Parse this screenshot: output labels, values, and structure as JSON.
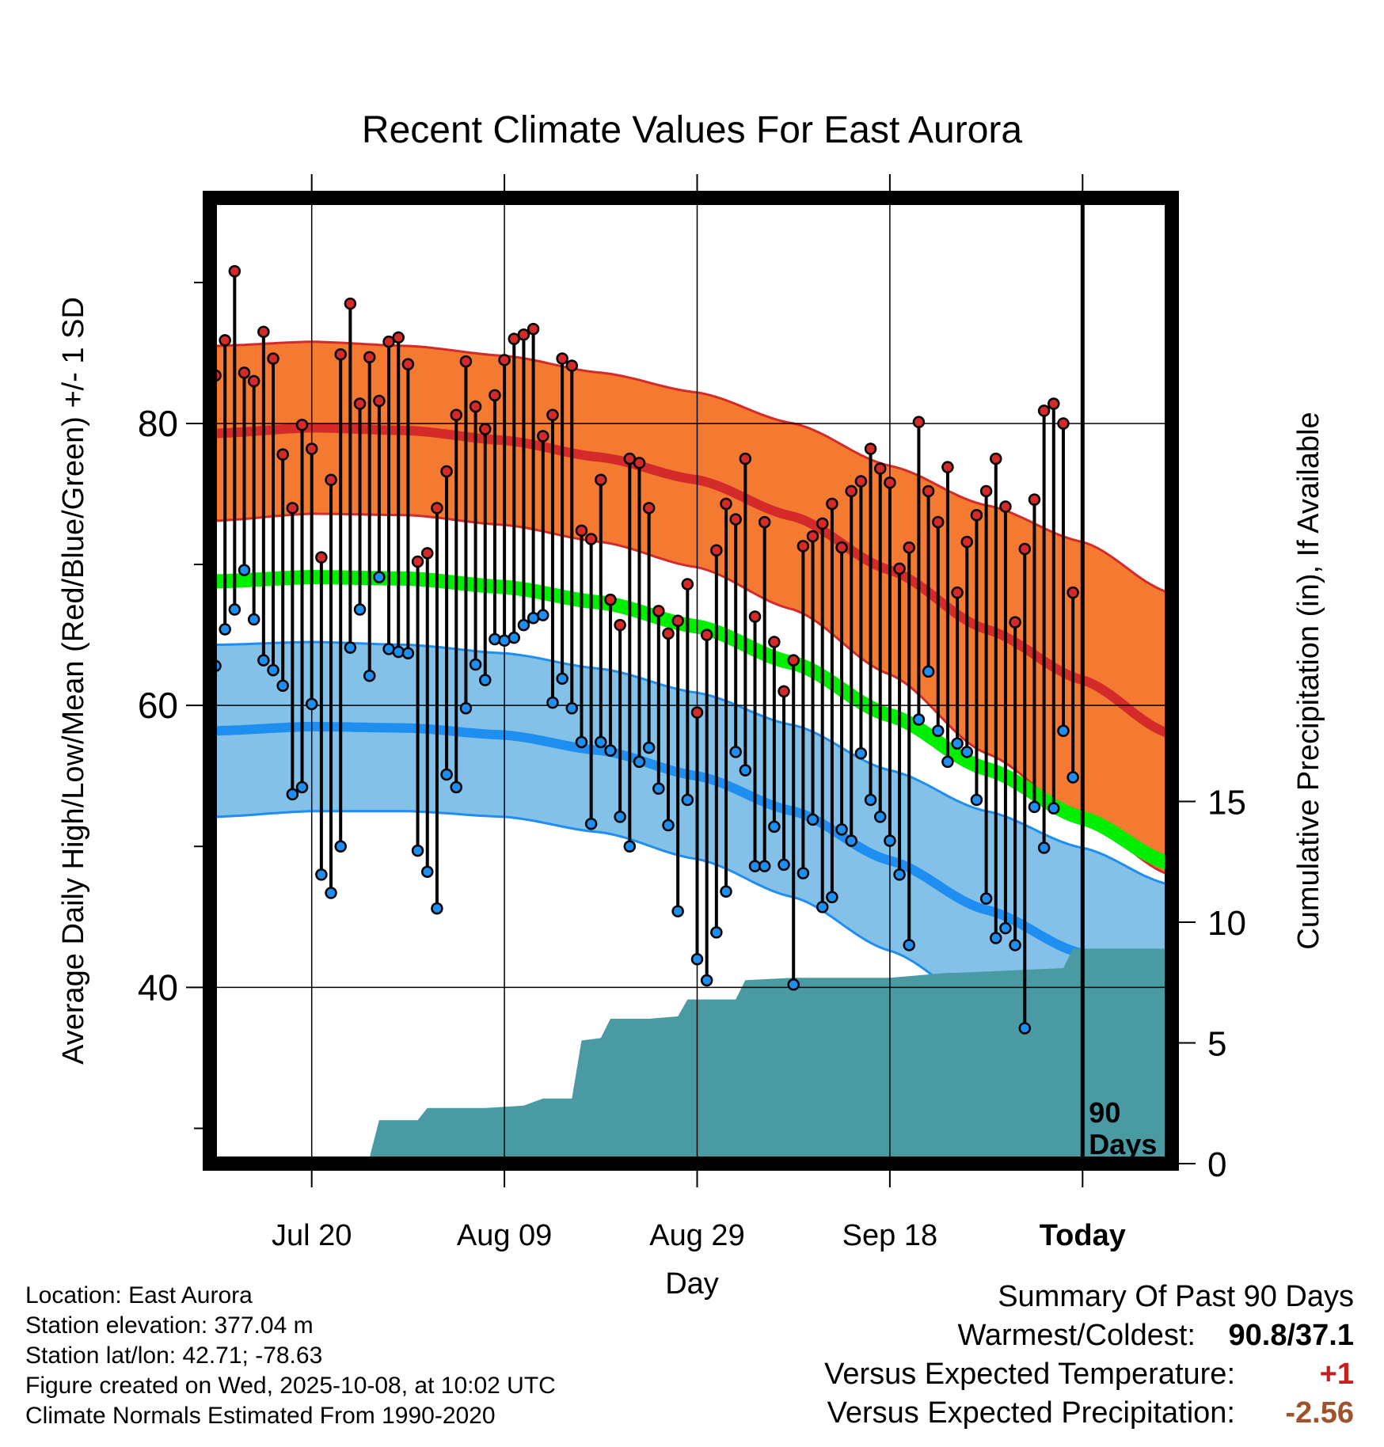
{
  "colors": {
    "high": "#d42a2a",
    "high_band": "#f47a32",
    "low": "#1e8ef0",
    "low_band": "#84c1e8",
    "mean": "#00ee00",
    "precip": "#4a9aa4",
    "temp_diff": "#c42020",
    "precip_diff": "#a0522d"
  },
  "chart_data": {
    "type": "line",
    "title": "Recent Climate Values For East Aurora",
    "xlabel": "Day",
    "ylabel": "Average Daily High/Low/Mean (Red/Blue/Green) +/- 1 SD",
    "ylabel_right": "Cumulative Precipitation (in), If Available",
    "ylim": [
      27.5,
      96
    ],
    "ylim_right": [
      0,
      40
    ],
    "x_ticks": [
      {
        "day": 10,
        "label": "Jul 20"
      },
      {
        "day": 30,
        "label": "Aug 09"
      },
      {
        "day": 50,
        "label": "Aug 29"
      },
      {
        "day": 70,
        "label": "Sep 18"
      },
      {
        "day": 90,
        "label": "Today"
      }
    ],
    "y_ticks": [
      40,
      60,
      80
    ],
    "y_ticks_right": [
      0,
      5,
      10,
      15
    ],
    "today_label": "90\nDays",
    "normals": {
      "days": [
        0,
        10,
        20,
        30,
        40,
        50,
        60,
        70,
        80,
        90,
        99
      ],
      "high_mean": [
        79.3,
        79.7,
        79.5,
        78.8,
        77.6,
        76.0,
        73.4,
        69.6,
        65.4,
        61.8,
        58.0
      ],
      "high_sd": [
        6.2,
        6.1,
        6.0,
        6.0,
        6.0,
        6.2,
        6.6,
        7.4,
        8.8,
        9.8,
        10.0
      ],
      "low_mean": [
        58.2,
        58.5,
        58.4,
        57.9,
        56.8,
        55.0,
        52.5,
        49.0,
        45.5,
        42.4,
        39.5
      ],
      "low_sd": [
        6.1,
        6.0,
        5.9,
        5.8,
        5.8,
        5.9,
        6.1,
        6.4,
        7.0,
        7.5,
        7.8
      ],
      "mean": [
        68.8,
        69.1,
        69.0,
        68.4,
        67.3,
        65.6,
        63.0,
        59.3,
        55.5,
        52.0,
        48.8
      ]
    },
    "observed": {
      "high": [
        83.4,
        85.9,
        90.8,
        83.6,
        83.0,
        86.5,
        84.6,
        77.8,
        74.0,
        79.9,
        78.2,
        70.5,
        76.0,
        84.9,
        88.5,
        81.4,
        84.7,
        81.6,
        85.8,
        86.1,
        84.2,
        70.2,
        70.8,
        74.0,
        76.6,
        80.6,
        84.4,
        81.2,
        79.6,
        82.0,
        84.5,
        86.0,
        86.3,
        86.7,
        79.1,
        80.6,
        84.6,
        84.1,
        72.4,
        71.8,
        76.0,
        67.5,
        65.7,
        77.5,
        77.2,
        74.0,
        66.7,
        65.1,
        66.0,
        68.6,
        59.5,
        65.0,
        71.0,
        74.3,
        73.2,
        77.5,
        66.3,
        73.0,
        64.5,
        61.0,
        63.2,
        71.3,
        72.0,
        72.9,
        74.3,
        71.2,
        75.2,
        75.9,
        78.2,
        76.8,
        75.8,
        69.7,
        71.2,
        80.1,
        75.2,
        73.0,
        76.9,
        68.0,
        71.6,
        73.5,
        75.2,
        77.5,
        74.1,
        65.9,
        71.1,
        74.6,
        80.9,
        81.4,
        80.0,
        68.0
      ],
      "low": [
        62.8,
        65.4,
        66.8,
        69.6,
        66.1,
        63.2,
        62.5,
        61.4,
        53.7,
        54.2,
        60.1,
        48.0,
        46.7,
        50.0,
        64.1,
        66.8,
        62.1,
        69.1,
        64.0,
        63.8,
        63.7,
        49.7,
        48.2,
        45.6,
        55.1,
        54.2,
        59.8,
        62.9,
        61.8,
        64.7,
        64.6,
        64.8,
        65.7,
        66.2,
        66.4,
        60.2,
        61.9,
        59.8,
        57.4,
        51.6,
        57.4,
        56.8,
        52.1,
        50.0,
        56.0,
        57.0,
        54.1,
        51.5,
        45.4,
        53.3,
        42.0,
        40.5,
        43.9,
        46.8,
        56.7,
        55.4,
        48.6,
        48.6,
        51.4,
        48.7,
        40.2,
        48.1,
        51.9,
        45.7,
        46.4,
        51.2,
        50.4,
        56.6,
        53.3,
        52.1,
        50.4,
        48.0,
        43.0,
        59.0,
        62.4,
        58.2,
        56.0,
        57.3,
        56.7,
        53.3,
        46.3,
        43.5,
        44.2,
        43.0,
        37.1,
        52.8,
        49.9,
        52.7,
        58.2,
        54.9
      ]
    },
    "precip": {
      "days": [
        0,
        5,
        6,
        10,
        11,
        12,
        13,
        16,
        17,
        18,
        21,
        22,
        25,
        28,
        32,
        34,
        37,
        38,
        40,
        41,
        45,
        48,
        49,
        54,
        55,
        60,
        70,
        76,
        77,
        88,
        89,
        99
      ],
      "values": [
        0,
        0,
        0.05,
        0.1,
        0.15,
        0.15,
        0.2,
        0.25,
        1.8,
        1.8,
        1.8,
        2.3,
        2.3,
        2.3,
        2.4,
        2.7,
        2.7,
        5.1,
        5.2,
        6.0,
        6.0,
        6.1,
        6.8,
        6.8,
        7.6,
        7.7,
        7.7,
        7.9,
        7.9,
        8.1,
        8.9,
        8.9
      ]
    }
  },
  "info": {
    "location": "Location: East Aurora",
    "elevation": "Station elevation: 377.04 m",
    "latlon": "Station lat/lon: 42.71; -78.63",
    "created": "Figure created on Wed, 2025-10-08, at 10:02 UTC",
    "normals_period": "Climate Normals Estimated From 1990-2020"
  },
  "summary": {
    "heading": "Summary Of Past 90 Days",
    "warmest_label": "Warmest/Coldest:",
    "warmest_value": "90.8/37.1",
    "temp_label": "Versus Expected Temperature:",
    "temp_value": "+1",
    "precip_label": "Versus Expected Precipitation:",
    "precip_value": "-2.56"
  }
}
